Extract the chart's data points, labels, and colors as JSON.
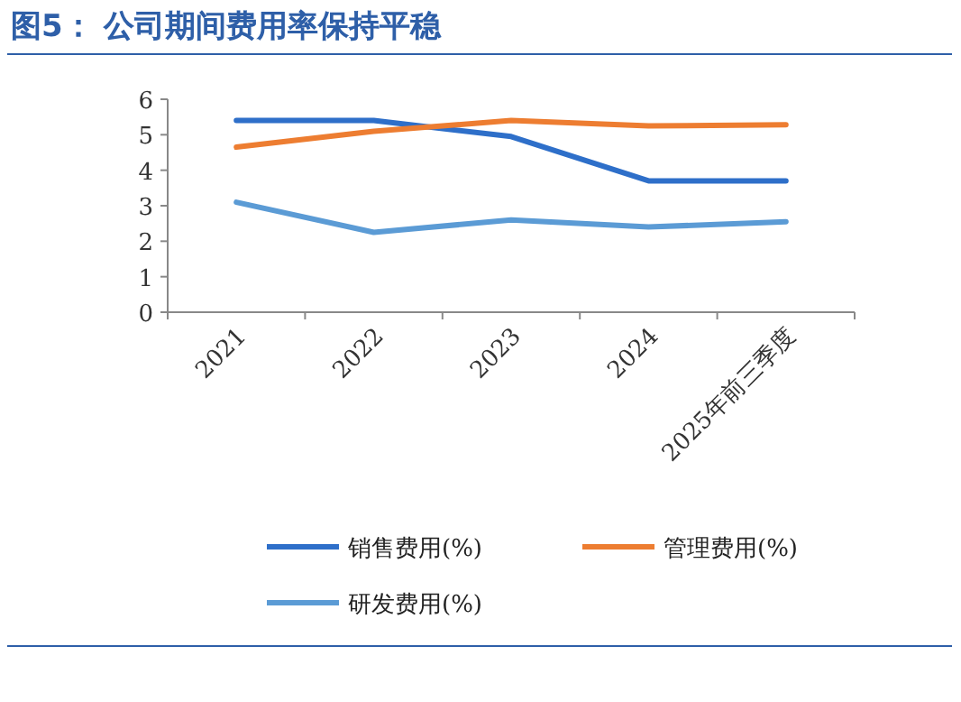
{
  "chart_data": {
    "type": "line",
    "title": "图5： 公司期间费用率保持平稳",
    "categories": [
      "2021",
      "2022",
      "2023",
      "2024",
      "2025年前三季度"
    ],
    "series": [
      {
        "name": "销售费用(%)",
        "color": "#2e6fc9",
        "values": [
          5.4,
          5.4,
          4.95,
          3.7,
          3.7
        ]
      },
      {
        "name": "管理费用(%)",
        "color": "#ed7d31",
        "values": [
          4.65,
          5.1,
          5.4,
          5.25,
          5.28
        ]
      },
      {
        "name": "研发费用(%)",
        "color": "#5b9bd5",
        "values": [
          3.1,
          2.25,
          2.6,
          2.4,
          2.55
        ]
      }
    ],
    "ylim": [
      0,
      6
    ],
    "yticks": [
      0,
      1,
      2,
      3,
      4,
      5,
      6
    ],
    "grid": false,
    "legend": "bottom",
    "marker": "none",
    "line_style": "solid"
  }
}
